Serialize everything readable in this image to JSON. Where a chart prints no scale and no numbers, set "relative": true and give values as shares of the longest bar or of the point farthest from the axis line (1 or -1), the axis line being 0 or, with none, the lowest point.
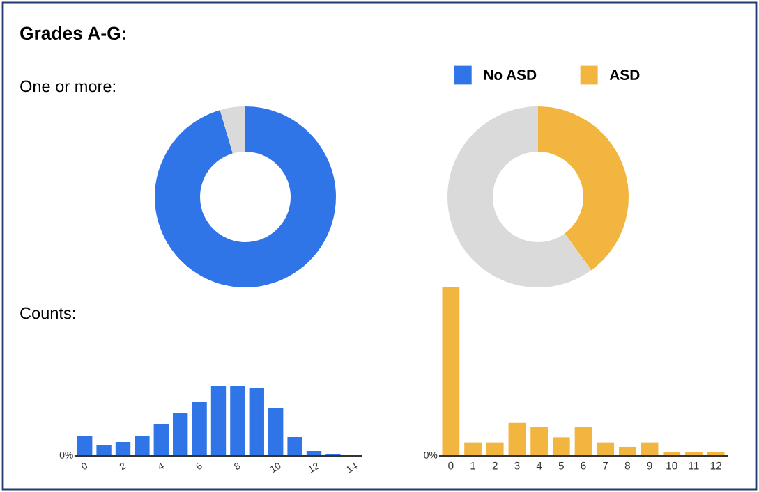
{
  "chart_data": [
    {
      "type": "donut",
      "title": "Grades A-G:",
      "subtitle": "One or more:",
      "categories": [
        "No ASD",
        null
      ],
      "values": [
        95.5,
        4.5
      ],
      "colors": [
        "#2f75e8",
        "#dadada"
      ],
      "legend": "top right"
    },
    {
      "type": "donut",
      "categories": [
        "ASD",
        null
      ],
      "values": [
        40,
        60
      ],
      "colors": [
        "#f2b53f",
        "#dadada"
      ],
      "legend": "top"
    },
    {
      "type": "bar",
      "subtitle": "Counts:",
      "relative": true,
      "categories": [
        "0",
        null,
        "2",
        null,
        "4",
        null,
        "6",
        null,
        "8",
        null,
        "10",
        null,
        "12",
        null,
        "14"
      ],
      "values": [
        0.29,
        0.15,
        0.2,
        0.29,
        0.45,
        0.61,
        0.77,
        1,
        1,
        0.98,
        0.69,
        0.27,
        0.07,
        0.02,
        0
      ],
      "color": "#2f75e8",
      "annotations": [
        "0%"
      ]
    },
    {
      "type": "bar",
      "relative": true,
      "categories": [
        "0",
        "1",
        "2",
        "3",
        "4",
        "5",
        "6",
        "7",
        "8",
        "9",
        "10",
        "11",
        "12"
      ],
      "values": [
        1,
        0.08,
        0.08,
        0.195,
        0.17,
        0.11,
        0.17,
        0.08,
        0.054,
        0.08,
        0.023,
        0.023,
        0.023
      ],
      "color": "#f2b53f",
      "annotations": [
        "0%"
      ]
    }
  ]
}
